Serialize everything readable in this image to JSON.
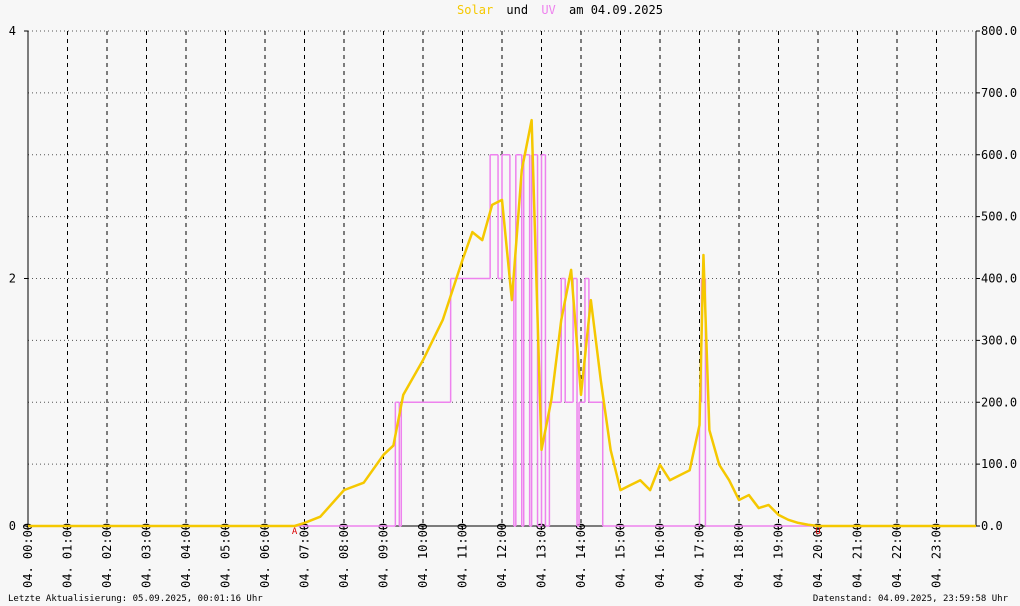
{
  "chart_data": {
    "type": "line",
    "title": [
      "Solar",
      "und",
      "UV",
      "am 04.09.2025"
    ],
    "xlim": [
      0,
      24
    ],
    "xticks": [
      {
        "value": 0,
        "label": "04. 00:00"
      },
      {
        "value": 1,
        "label": "04. 01:00"
      },
      {
        "value": 2,
        "label": "04. 02:00"
      },
      {
        "value": 3,
        "label": "04. 03:00"
      },
      {
        "value": 4,
        "label": "04. 04:00"
      },
      {
        "value": 5,
        "label": "04. 05:00"
      },
      {
        "value": 6,
        "label": "04. 06:00"
      },
      {
        "value": 7,
        "label": "04. 07:00"
      },
      {
        "value": 8,
        "label": "04. 08:00"
      },
      {
        "value": 9,
        "label": "04. 09:00"
      },
      {
        "value": 10,
        "label": "04. 10:00"
      },
      {
        "value": 11,
        "label": "04. 11:00"
      },
      {
        "value": 12,
        "label": "04. 12:00"
      },
      {
        "value": 13,
        "label": "04. 13:00"
      },
      {
        "value": 14,
        "label": "04. 14:00"
      },
      {
        "value": 15,
        "label": "04. 15:00"
      },
      {
        "value": 16,
        "label": "04. 16:00"
      },
      {
        "value": 17,
        "label": "04. 17:00"
      },
      {
        "value": 18,
        "label": "04. 18:00"
      },
      {
        "value": 19,
        "label": "04. 19:00"
      },
      {
        "value": 20,
        "label": "04. 20:00"
      },
      {
        "value": 21,
        "label": "04. 21:00"
      },
      {
        "value": 22,
        "label": "04. 22:00"
      },
      {
        "value": 23,
        "label": "04. 23:00"
      }
    ],
    "ylim": [
      0,
      4
    ],
    "yticks": [
      0,
      2,
      4
    ],
    "y2lim": [
      0,
      800
    ],
    "y2ticks": [
      {
        "value": 0,
        "label": "0.0"
      },
      {
        "value": 100,
        "label": "100.0"
      },
      {
        "value": 200,
        "label": "200.0"
      },
      {
        "value": 300,
        "label": "300.0"
      },
      {
        "value": 400,
        "label": "400.0"
      },
      {
        "value": 500,
        "label": "500.0"
      },
      {
        "value": 600,
        "label": "600.0"
      },
      {
        "value": 700,
        "label": "700.0"
      },
      {
        "value": 800,
        "label": "800.0"
      }
    ],
    "grid": true,
    "series": [
      {
        "name": "UV",
        "color": "#ee82ee",
        "step": true,
        "x": [
          0,
          9.3,
          9.4,
          9.45,
          10.7,
          11.7,
          11.9,
          12.0,
          12.2,
          12.3,
          12.35,
          12.5,
          12.55,
          12.7,
          12.75,
          12.9,
          13.0,
          13.1,
          13.2,
          13.5,
          13.6,
          13.8,
          13.9,
          13.95,
          14.1,
          14.2,
          14.55,
          17.0,
          17.05,
          17.15,
          24
        ],
        "values": [
          0,
          1,
          0,
          1,
          2,
          3,
          2,
          3,
          2,
          0,
          3,
          0,
          3,
          0,
          3,
          0,
          3,
          0,
          1,
          2,
          1,
          2,
          0,
          1,
          2,
          1,
          0,
          1,
          2,
          0,
          0
        ]
      },
      {
        "name": "Solar",
        "color": "#f5c800",
        "axis": "y2",
        "x": [
          0,
          6.75,
          7.0,
          7.4,
          8.0,
          8.5,
          9.0,
          9.25,
          9.5,
          10.0,
          10.5,
          11.0,
          11.25,
          11.5,
          11.75,
          12.0,
          12.25,
          12.5,
          12.75,
          13.0,
          13.25,
          13.5,
          13.75,
          14.0,
          14.25,
          14.5,
          14.75,
          15.0,
          15.25,
          15.5,
          15.75,
          16.0,
          16.25,
          16.5,
          16.75,
          17.0,
          17.1,
          17.25,
          17.5,
          17.75,
          18.0,
          18.25,
          18.5,
          18.75,
          19.0,
          19.25,
          19.5,
          19.75,
          20.0,
          24
        ],
        "values": [
          0,
          0,
          5,
          15,
          58,
          70,
          115,
          130,
          212,
          268,
          333,
          430,
          475,
          462,
          519,
          527,
          365,
          575,
          656,
          123,
          204,
          333,
          414,
          212,
          365,
          236,
          123,
          58,
          66,
          74,
          58,
          99,
          74,
          82,
          90,
          163,
          438,
          155,
          99,
          74,
          42,
          50,
          29,
          34,
          18,
          10,
          5,
          2,
          0,
          0
        ]
      }
    ],
    "markers": [
      {
        "x": 6.75,
        "label": "A"
      },
      {
        "x": 20.0,
        "label": "U"
      }
    ],
    "footer_left": "Letzte Aktualisierung: 05.09.2025, 00:01:16 Uhr",
    "footer_right": "Datenstand: 04.09.2025, 23:59:58 Uhr"
  }
}
